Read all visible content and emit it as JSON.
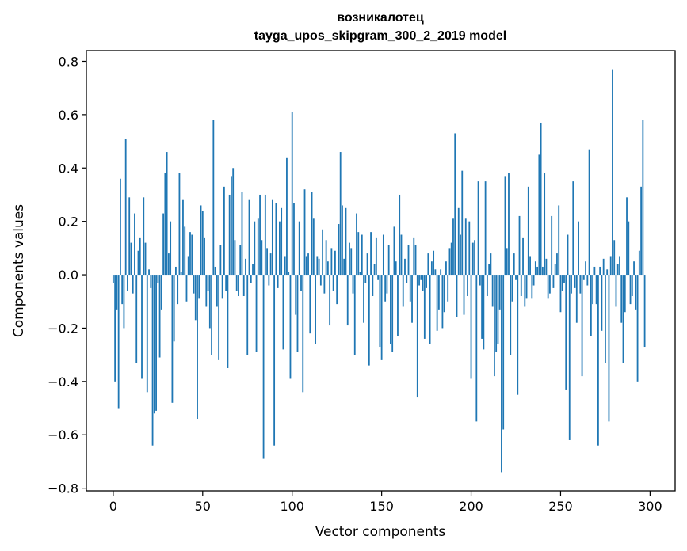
{
  "chart_data": {
    "type": "bar",
    "title": "возникалотец",
    "subtitle": "tayga_upos_skipgram_300_2_2019 model",
    "xlabel": "Vector components",
    "ylabel": "Components values",
    "xlim": [
      -15,
      314
    ],
    "ylim": [
      -0.81,
      0.84
    ],
    "xticks": [
      0,
      50,
      100,
      150,
      200,
      250,
      300
    ],
    "yticks": [
      -0.8,
      -0.6,
      -0.4,
      -0.2,
      0.0,
      0.2,
      0.4,
      0.6,
      0.8
    ],
    "ytick_labels": [
      "−0.8",
      "−0.6",
      "−0.4",
      "−0.2",
      "0.0",
      "0.2",
      "0.4",
      "0.6",
      "0.8"
    ],
    "bar_color": "#1f77b4",
    "grid": false,
    "values": [
      -0.03,
      -0.4,
      -0.13,
      -0.5,
      0.36,
      -0.11,
      -0.2,
      0.51,
      -0.06,
      0.29,
      0.12,
      -0.07,
      0.23,
      -0.33,
      0.09,
      0.14,
      -0.39,
      0.29,
      0.12,
      -0.44,
      0.02,
      -0.05,
      -0.64,
      -0.52,
      -0.51,
      -0.03,
      -0.31,
      -0.13,
      0.23,
      0.38,
      0.46,
      0.08,
      0.2,
      -0.48,
      -0.25,
      0.03,
      -0.11,
      0.38,
      0.01,
      0.28,
      0.18,
      -0.1,
      0.07,
      0.16,
      0.15,
      -0.07,
      -0.17,
      -0.54,
      -0.09,
      0.26,
      0.24,
      0.14,
      -0.12,
      -0.06,
      -0.2,
      -0.3,
      0.58,
      0.03,
      -0.12,
      -0.32,
      0.11,
      -0.09,
      0.33,
      -0.06,
      -0.35,
      0.3,
      0.37,
      0.4,
      0.13,
      -0.06,
      -0.08,
      0.11,
      0.31,
      -0.08,
      0.06,
      -0.3,
      0.28,
      -0.03,
      0.04,
      0.2,
      -0.29,
      0.21,
      0.3,
      0.13,
      -0.69,
      0.3,
      0.1,
      -0.04,
      0.08,
      0.28,
      -0.64,
      0.27,
      -0.05,
      0.2,
      0.25,
      -0.28,
      0.07,
      0.44,
      0.01,
      -0.39,
      0.61,
      0.27,
      -0.15,
      -0.29,
      0.2,
      -0.06,
      -0.44,
      0.32,
      0.07,
      0.08,
      -0.22,
      0.31,
      0.21,
      -0.26,
      0.07,
      0.06,
      -0.04,
      0.17,
      -0.07,
      0.13,
      0.05,
      -0.19,
      0.1,
      -0.06,
      0.09,
      -0.11,
      0.19,
      0.46,
      0.26,
      0.06,
      0.25,
      -0.19,
      0.12,
      0.1,
      -0.07,
      -0.3,
      0.23,
      0.16,
      0.01,
      0.15,
      -0.18,
      -0.03,
      0.08,
      -0.34,
      0.16,
      -0.08,
      0.04,
      0.14,
      -0.02,
      -0.27,
      -0.32,
      0.15,
      -0.1,
      -0.07,
      0.11,
      -0.26,
      -0.29,
      0.18,
      0.05,
      -0.23,
      0.3,
      0.15,
      -0.12,
      0.06,
      -0.03,
      0.11,
      -0.1,
      -0.18,
      0.14,
      0.11,
      -0.46,
      -0.04,
      -0.02,
      -0.06,
      -0.24,
      -0.05,
      0.08,
      -0.26,
      0.05,
      0.09,
      0.02,
      -0.21,
      -0.13,
      0.02,
      -0.2,
      -0.14,
      0.05,
      -0.1,
      0.1,
      0.12,
      0.21,
      0.53,
      -0.16,
      0.25,
      0.15,
      0.39,
      -0.15,
      0.21,
      -0.08,
      0.2,
      -0.39,
      0.12,
      0.13,
      -0.55,
      0.35,
      -0.04,
      -0.24,
      -0.28,
      0.35,
      -0.08,
      0.04,
      0.08,
      -0.12,
      -0.38,
      -0.29,
      -0.26,
      -0.13,
      -0.74,
      -0.58,
      0.37,
      0.1,
      0.38,
      -0.3,
      -0.1,
      0.08,
      -0.02,
      -0.45,
      0.22,
      -0.08,
      0.14,
      -0.12,
      -0.09,
      0.33,
      0.07,
      -0.09,
      -0.04,
      0.05,
      0.03,
      0.45,
      0.57,
      0.03,
      0.38,
      0.06,
      -0.09,
      -0.07,
      0.22,
      -0.05,
      0.04,
      0.08,
      0.26,
      -0.14,
      -0.06,
      -0.03,
      -0.43,
      0.15,
      -0.62,
      -0.07,
      0.35,
      -0.05,
      -0.18,
      0.2,
      -0.07,
      -0.38,
      -0.02,
      0.05,
      -0.04,
      0.47,
      -0.23,
      -0.11,
      0.03,
      -0.11,
      -0.64,
      0.03,
      -0.21,
      0.06,
      -0.33,
      0.02,
      -0.55,
      0.07,
      0.77,
      0.13,
      -0.12,
      0.04,
      0.07,
      -0.18,
      -0.33,
      -0.14,
      0.29,
      0.2,
      -0.11,
      -0.08,
      0.05,
      -0.13,
      -0.4,
      0.09,
      0.33,
      0.58,
      -0.27
    ]
  }
}
